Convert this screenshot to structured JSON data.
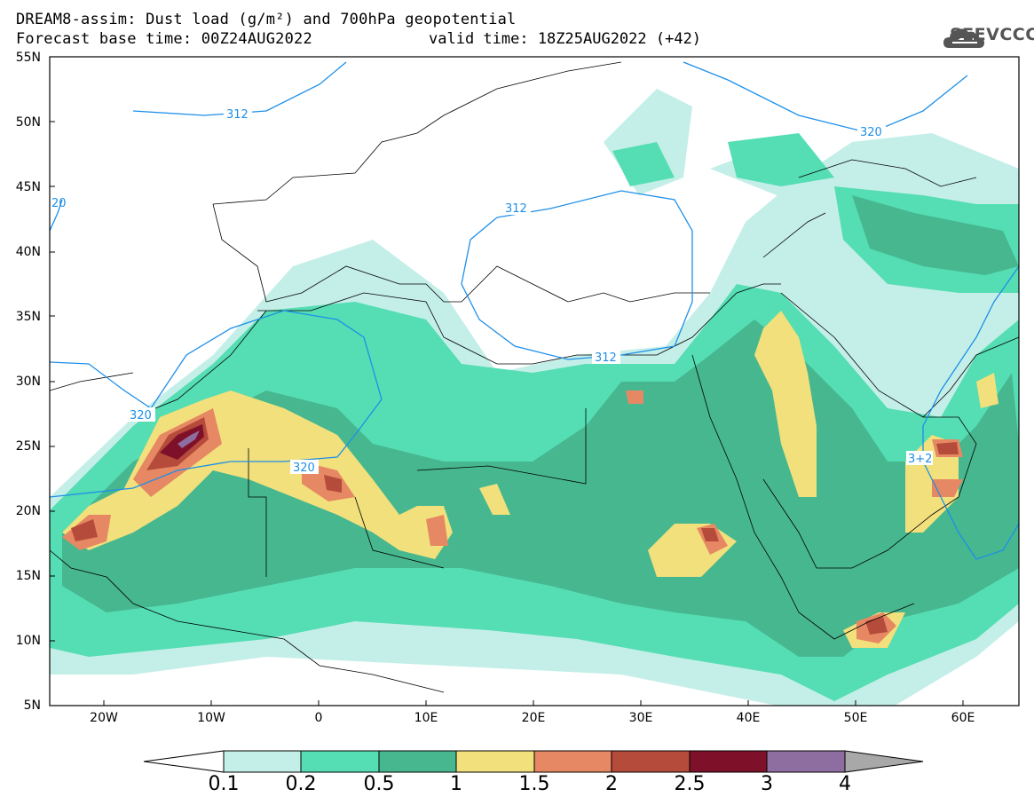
{
  "title": {
    "line1": "DREAM8-assim: Dust load (g/m²) and 700hPa geopotential",
    "line2": "Forecast base time: 00Z24AUG2022",
    "valid": "valid time: 18Z25AUG2022 (+42)"
  },
  "logo": {
    "text": "SEEVCCC",
    "icon": "cloud-logo-icon"
  },
  "map": {
    "lat_labels": [
      "55N",
      "50N",
      "45N",
      "40N",
      "35N",
      "30N",
      "25N",
      "20N",
      "15N",
      "10N",
      "5N"
    ],
    "lon_labels": [
      "20W",
      "10W",
      "0",
      "10E",
      "20E",
      "30E",
      "40E",
      "50E",
      "60E"
    ],
    "contour_labels": [
      "312",
      "320",
      "312",
      "320",
      "312",
      "320",
      "3+2",
      "20"
    ],
    "lon_range": [
      -25,
      65
    ],
    "lat_range": [
      5,
      55
    ]
  },
  "colorbar": {
    "labels": [
      "0.1",
      "0.2",
      "0.5",
      "1",
      "1.5",
      "2",
      "2.5",
      "3",
      "4"
    ],
    "colors": [
      "#c4efe8",
      "#55ddb3",
      "#47b78f",
      "#f1e07c",
      "#e68863",
      "#b54b3a",
      "#7e1029",
      "#8e6da0",
      "#a8a8a8"
    ]
  },
  "colors": {
    "land_background": "#ffffff",
    "contour": "#1e8fe8",
    "border": "#000000"
  }
}
